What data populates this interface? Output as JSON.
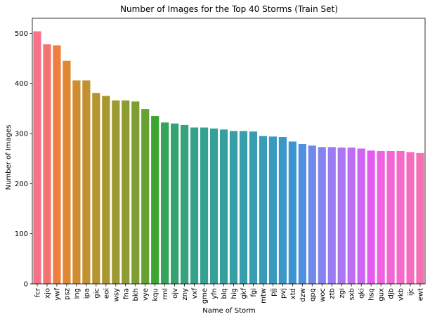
{
  "chart_data": {
    "type": "bar",
    "title": "Number of Images for the Top 40 Storms (Train Set)",
    "xlabel": "Name of Storm",
    "ylabel": "Number of Images",
    "ylim": [
      0,
      530
    ],
    "yticks": [
      0,
      100,
      200,
      300,
      400,
      500
    ],
    "grid": false,
    "legend": "none",
    "categories": [
      "fcr",
      "xjo",
      "ywf",
      "psz",
      "ing",
      "ipa",
      "gic",
      "eoi",
      "wsy",
      "fna",
      "bkh",
      "vye",
      "kqu",
      "rml",
      "ojv",
      "zny",
      "vxf",
      "gme",
      "yfn",
      "blq",
      "hig",
      "gkf",
      "fgi",
      "mtw",
      "pjj",
      "pvj",
      "xtd",
      "dzw",
      "qpq",
      "woc",
      "ztb",
      "zgi",
      "sxb",
      "qki",
      "hsq",
      "gux",
      "djb",
      "vkb",
      "ijc",
      "ewt"
    ],
    "values": [
      504,
      478,
      476,
      445,
      406,
      406,
      381,
      375,
      366,
      366,
      364,
      349,
      335,
      322,
      320,
      317,
      312,
      312,
      310,
      308,
      305,
      305,
      304,
      295,
      294,
      293,
      284,
      279,
      276,
      273,
      273,
      272,
      272,
      270,
      266,
      265,
      265,
      265,
      263,
      261
    ],
    "colors": [
      "#f77189",
      "#f5736f",
      "#ef7f41",
      "#df8732",
      "#cf8d32",
      "#c29132",
      "#b69432",
      "#a99732",
      "#9c9a32",
      "#8e9c31",
      "#7d9f31",
      "#65a231",
      "#3ca531",
      "#32a55b",
      "#33a470",
      "#34a37e",
      "#34a288",
      "#35a191",
      "#35a098",
      "#36a09f",
      "#369fa5",
      "#379eab",
      "#389db1",
      "#389bb7",
      "#3999be",
      "#3a97c7",
      "#3b93d2",
      "#4f8fdf",
      "#6e89ea",
      "#8583f2",
      "#9a7cf4",
      "#ab75f4",
      "#bd6ef4",
      "#cf65f4",
      "#e35bf0",
      "#f062e2",
      "#f466d6",
      "#f56acb",
      "#f66dbf",
      "#f66fb3"
    ]
  }
}
